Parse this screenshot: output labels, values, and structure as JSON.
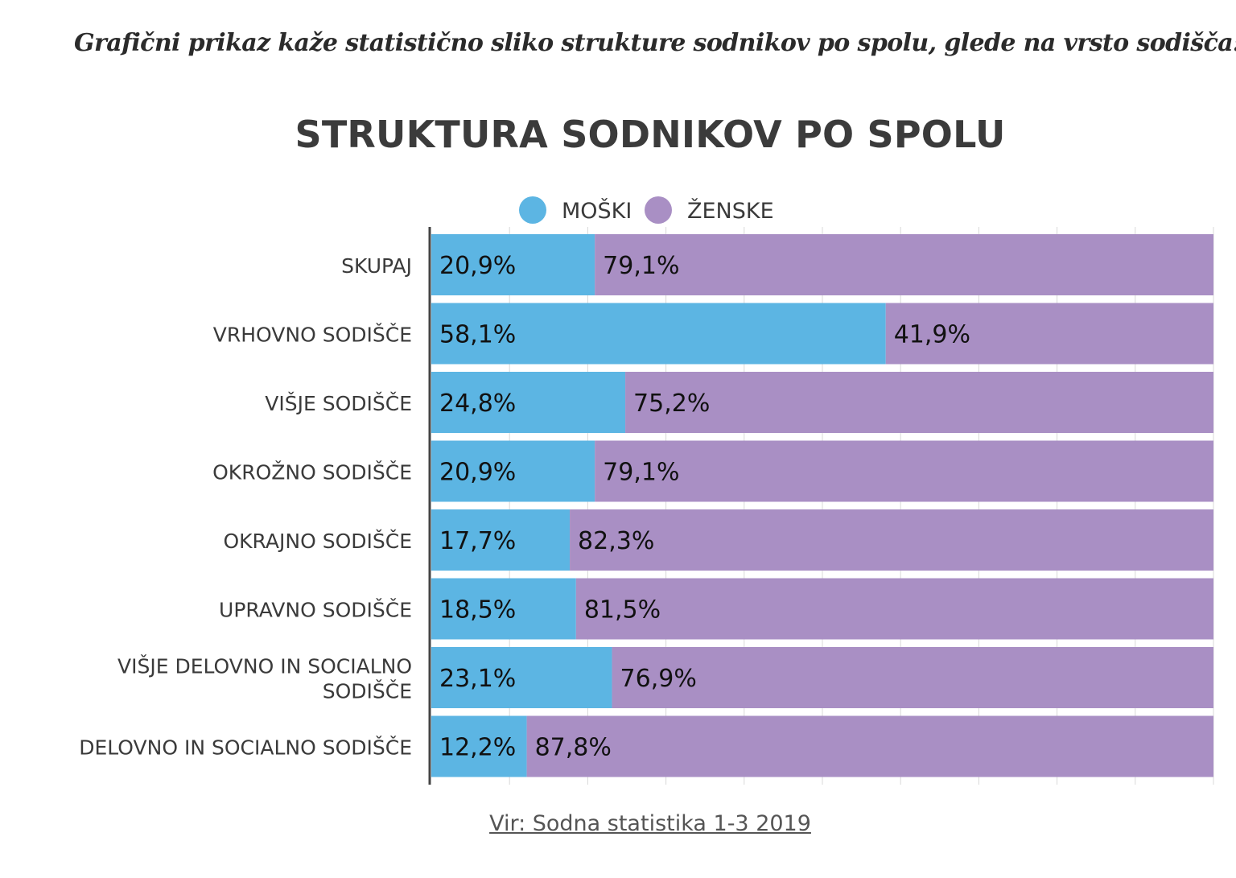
{
  "intro_text": "Grafični prikaz kaže statistično sliko strukture sodnikov po spolu, glede na vrsto sodišča:",
  "source_text": "Vir: Sodna statistika 1-3 2019",
  "colors": {
    "moski": "#5cb5e3",
    "zenske": "#a98fc4",
    "axis": "#444444",
    "grid": "#d8d8d8",
    "label": "#3a3a3a",
    "value": "#111111"
  },
  "chart_data": {
    "type": "bar",
    "orientation": "horizontal",
    "stacked": true,
    "title": "STRUKTURA SODNIKOV PO SPOLU",
    "legend_position": "top",
    "xlim": [
      0,
      100
    ],
    "grid": true,
    "categories": [
      [
        "SKUPAJ"
      ],
      [
        "VRHOVNO SODIŠČE"
      ],
      [
        "VIŠJE SODIŠČE"
      ],
      [
        "OKROŽNO SODIŠČE"
      ],
      [
        "OKRAJNO SODIŠČE"
      ],
      [
        "UPRAVNO SODIŠČE"
      ],
      [
        "VIŠJE DELOVNO IN SOCIALNO",
        "SODIŠČE"
      ],
      [
        "DELOVNO IN SOCIALNO SODIŠČE"
      ]
    ],
    "series": [
      {
        "name": "MOŠKI",
        "values": [
          20.9,
          58.1,
          24.8,
          20.9,
          17.7,
          18.5,
          23.1,
          12.2
        ],
        "labels": [
          "20,9%",
          "58,1%",
          "24,8%",
          "20,9%",
          "17,7%",
          "18,5%",
          "23,1%",
          "12,2%"
        ]
      },
      {
        "name": "ŽENSKE",
        "values": [
          79.1,
          41.9,
          75.2,
          79.1,
          82.3,
          81.5,
          76.9,
          87.8
        ],
        "labels": [
          "79,1%",
          "41,9%",
          "75,2%",
          "79,1%",
          "82,3%",
          "81,5%",
          "76,9%",
          "87,8%"
        ]
      }
    ]
  }
}
